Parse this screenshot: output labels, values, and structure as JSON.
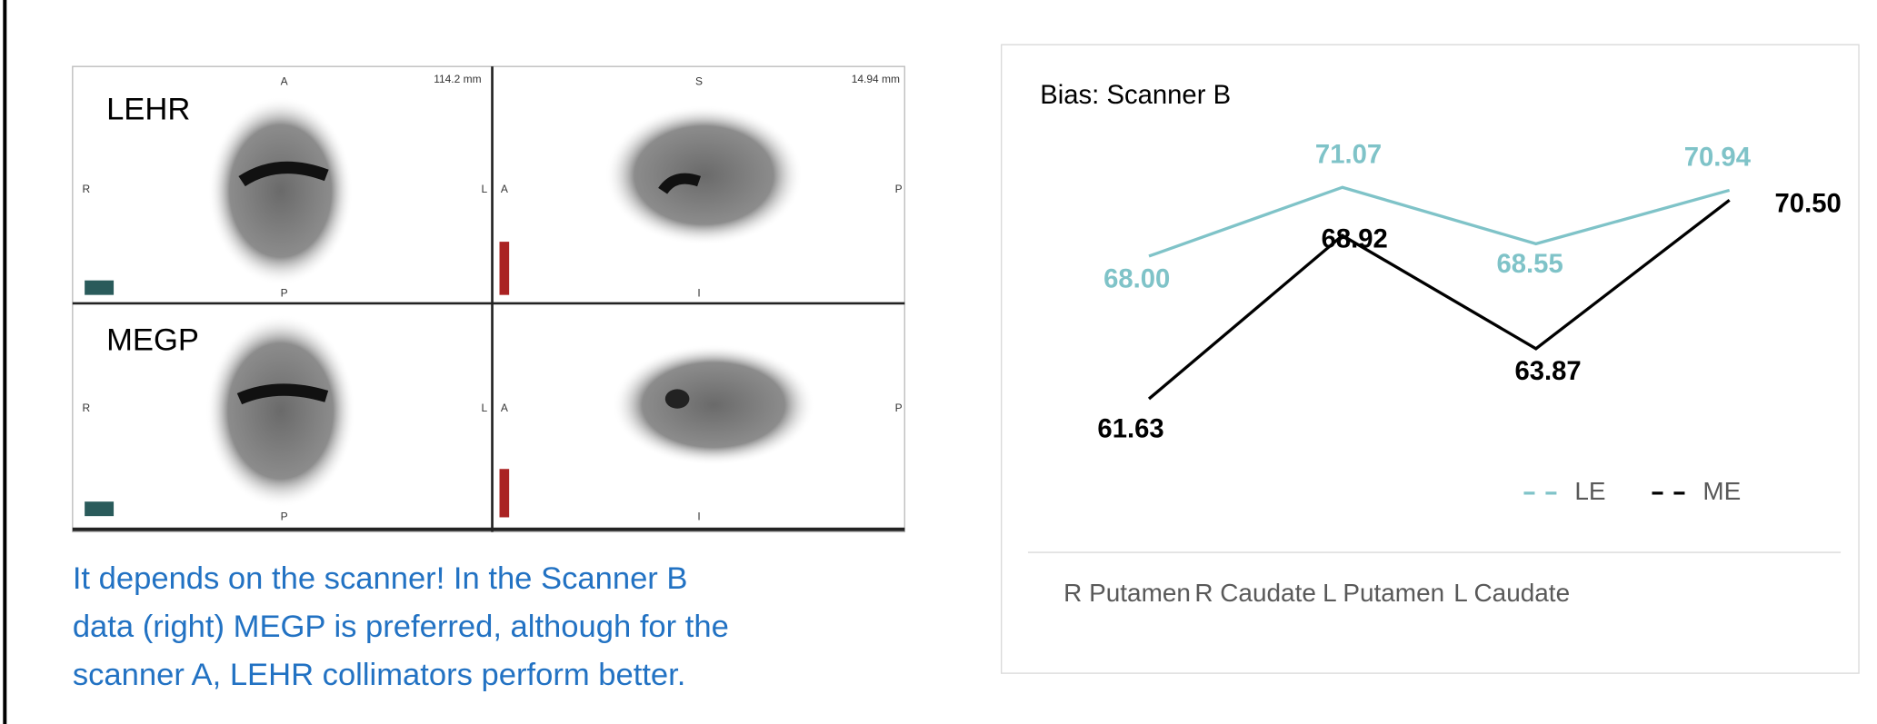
{
  "chart_data": {
    "type": "line",
    "title": "Bias: Scanner B",
    "categories": [
      "R Putamen",
      "R Caudate",
      "L Putamen",
      "L Caudate"
    ],
    "series": [
      {
        "name": "LE",
        "color": "#7fc3c8",
        "values": [
          68.0,
          71.07,
          68.55,
          70.94
        ],
        "value_labels": [
          "68.00",
          "71.07",
          "68.55",
          "70.94"
        ]
      },
      {
        "name": "ME",
        "color": "#000000",
        "values": [
          61.63,
          68.92,
          63.87,
          70.5
        ],
        "value_labels": [
          "61.63",
          "68.92",
          "63.87",
          "70.50"
        ]
      }
    ],
    "legend": "bottom-right"
  },
  "slide": {
    "images": {
      "top_label": "LEHR",
      "bottom_label": "MEGP",
      "annotations": [
        "A",
        "P",
        "R",
        "L",
        "114.2 mm",
        "S",
        "I",
        "A",
        "P",
        "14.94 mm",
        "R",
        "L",
        "P",
        "A",
        "P",
        "I"
      ]
    },
    "caption": [
      "It depends on the scanner! In the Scanner B",
      "data (right) MEGP is preferred, although for the",
      "scanner A, LEHR collimators perform better."
    ]
  }
}
